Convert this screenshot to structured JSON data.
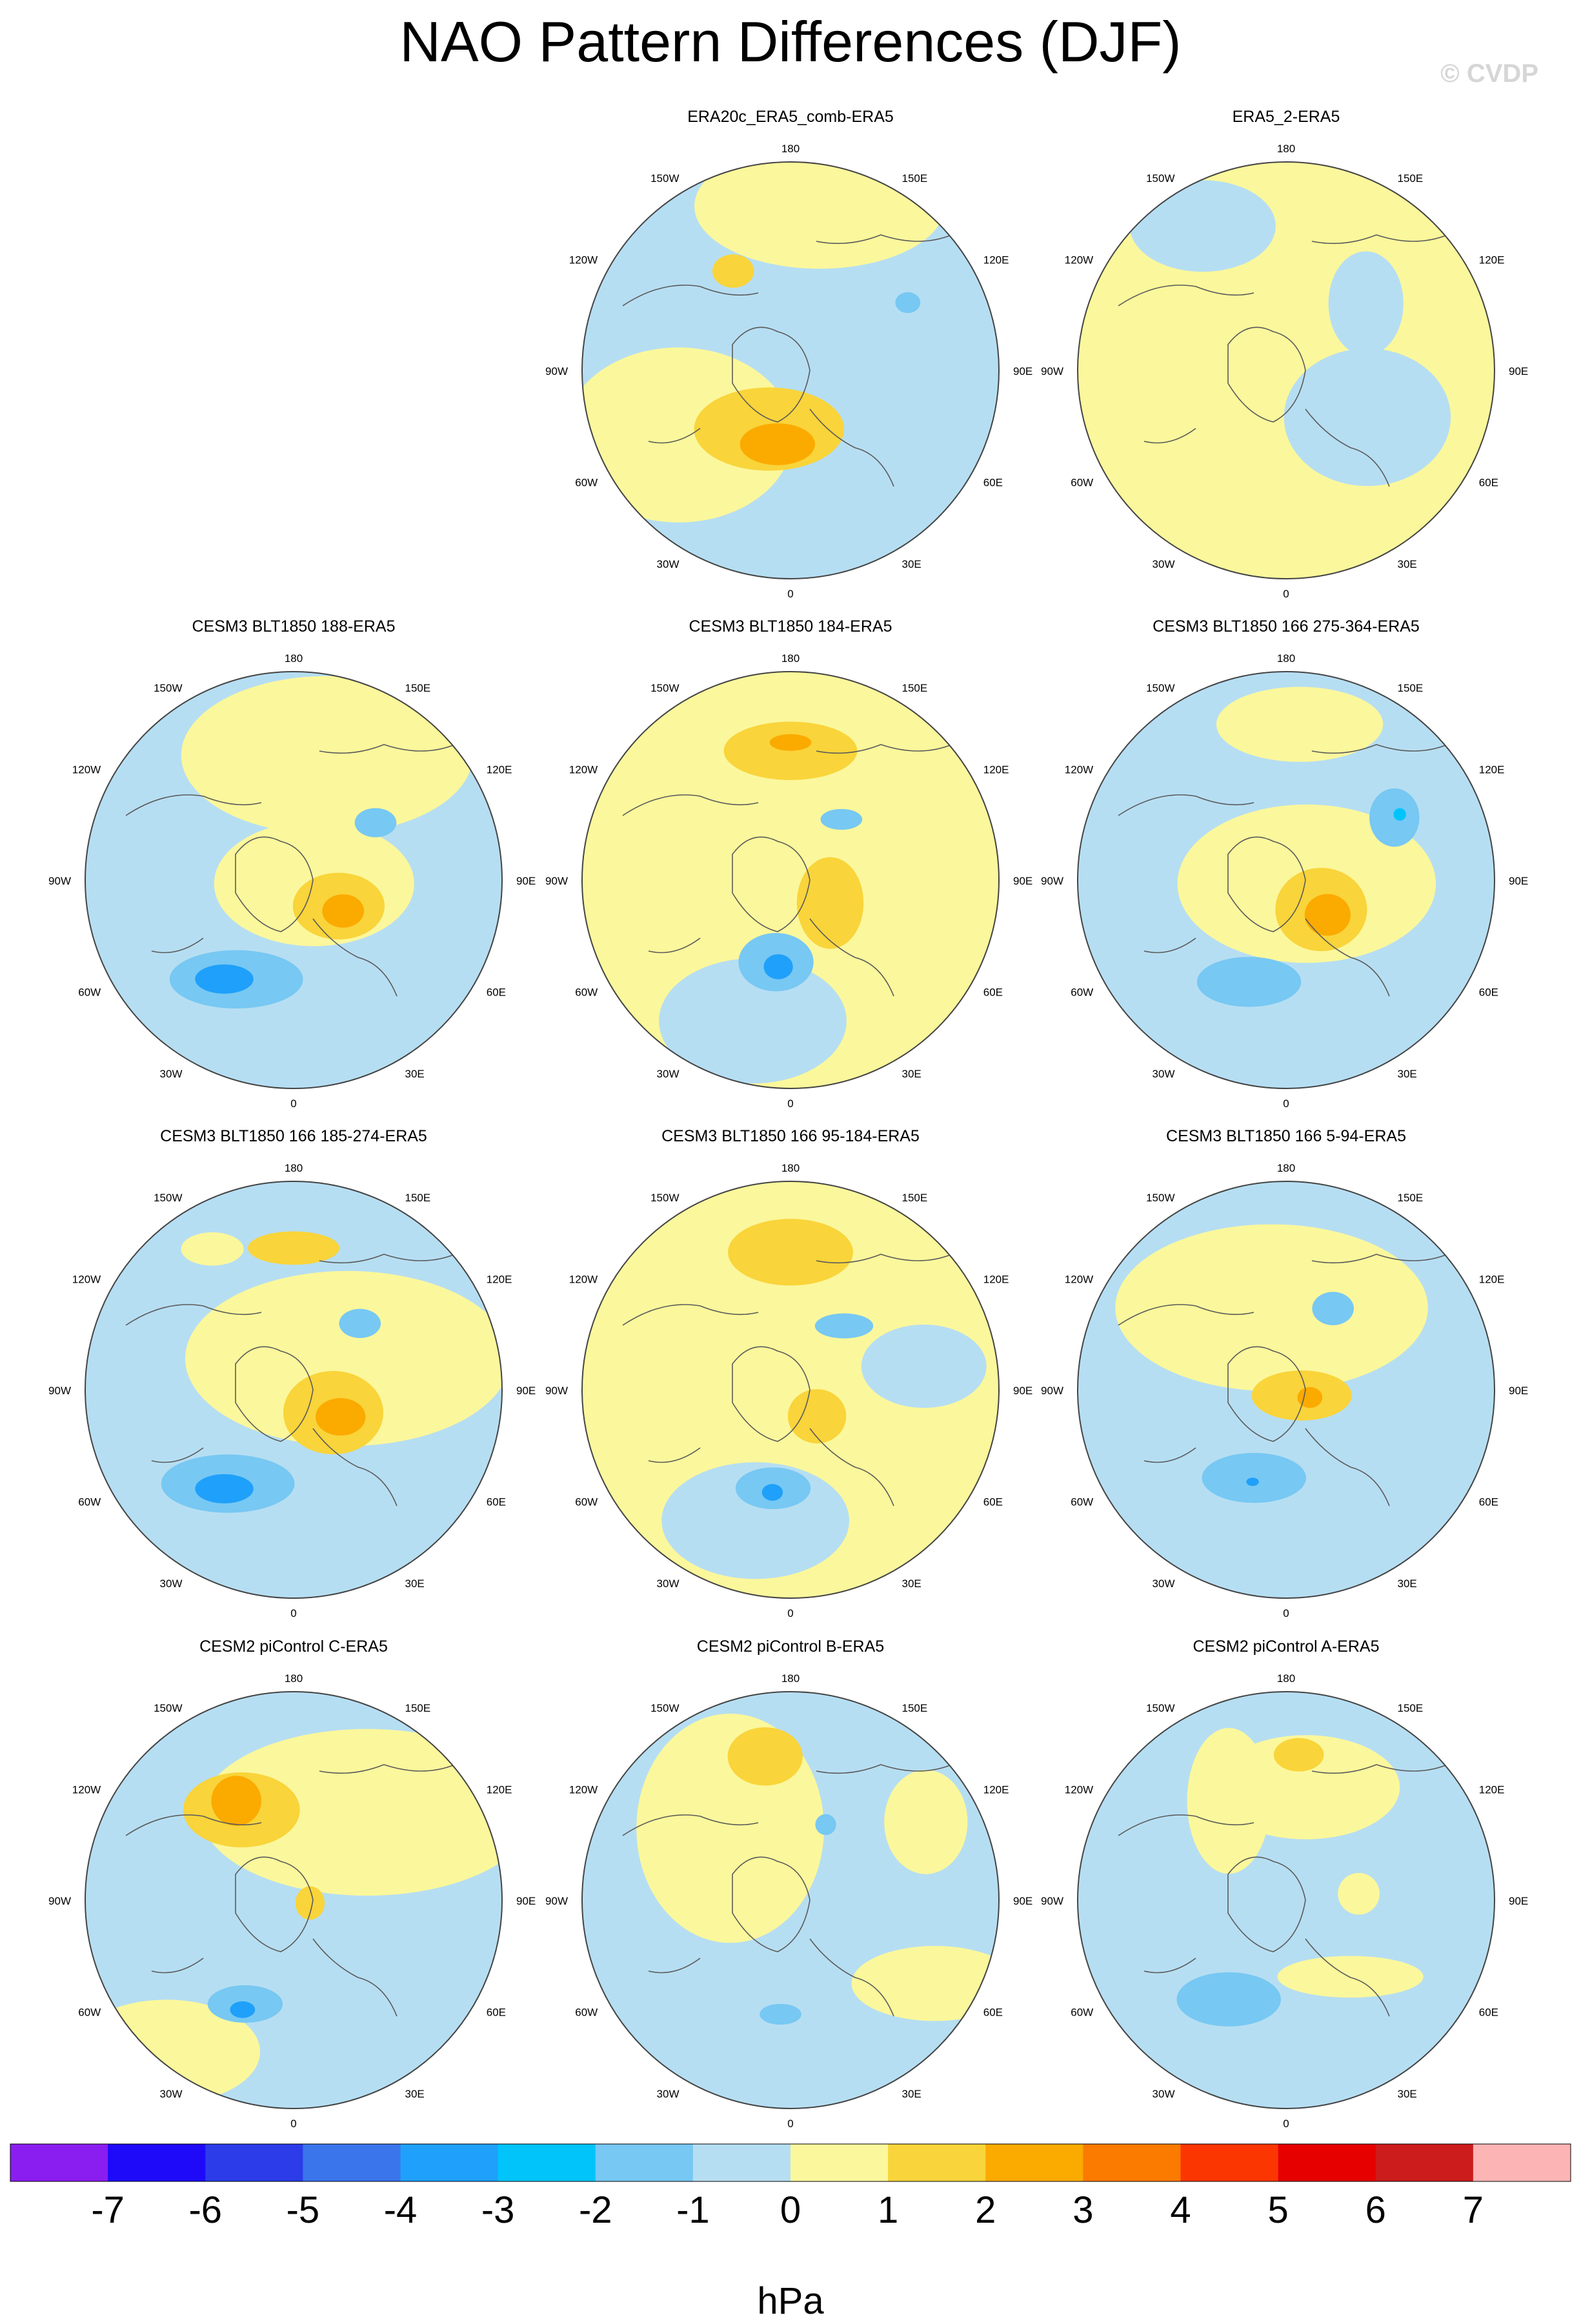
{
  "title": "NAO Pattern Differences (DJF)",
  "credit": "© CVDP",
  "lon_labels": [
    "180",
    "150E",
    "120E",
    "90E",
    "60E",
    "30E",
    "0",
    "30W",
    "60W",
    "90W",
    "120W",
    "150W"
  ],
  "panels": [
    {
      "title": "ERA20c_ERA5_comb-ERA5",
      "base": "#b6def2",
      "features": [
        {
          "lon": -60,
          "r": 0.62,
          "rx": 0.55,
          "ry": 0.42,
          "level": 1
        },
        {
          "lon": 170,
          "r": 0.8,
          "rx": 0.6,
          "ry": 0.3,
          "level": 1
        },
        {
          "lon": -20,
          "r": 0.3,
          "rx": 0.36,
          "ry": 0.2,
          "level": 2
        },
        {
          "lon": -10,
          "r": 0.36,
          "rx": 0.18,
          "ry": 0.1,
          "level": 3
        },
        {
          "lon": -150,
          "r": 0.55,
          "rx": 0.1,
          "ry": 0.08,
          "level": 2
        },
        {
          "lon": 120,
          "r": 0.65,
          "rx": 0.06,
          "ry": 0.05,
          "level": -2
        }
      ]
    },
    {
      "title": "ERA5_2-ERA5",
      "base": "#fbf79c",
      "features": [
        {
          "lon": 60,
          "r": 0.45,
          "rx": 0.4,
          "ry": 0.33,
          "level": -1
        },
        {
          "lon": -150,
          "r": 0.8,
          "rx": 0.35,
          "ry": 0.22,
          "level": -1
        },
        {
          "lon": 160,
          "r": 0.88,
          "rx": 0.12,
          "ry": 0.08,
          "level": 1
        },
        {
          "lon": 130,
          "r": 0.5,
          "rx": 0.18,
          "ry": 0.25,
          "level": -1
        }
      ]
    },
    {
      "title": "CESM3 BLT1850 188-ERA5",
      "base": "#b6def2",
      "features": [
        {
          "lon": 165,
          "r": 0.62,
          "rx": 0.7,
          "ry": 0.38,
          "level": 1
        },
        {
          "lon": 80,
          "r": 0.1,
          "rx": 0.48,
          "ry": 0.3,
          "level": 1
        },
        {
          "lon": 60,
          "r": 0.25,
          "rx": 0.22,
          "ry": 0.16,
          "level": 2
        },
        {
          "lon": 58,
          "r": 0.28,
          "rx": 0.1,
          "ry": 0.08,
          "level": 3
        },
        {
          "lon": -30,
          "r": 0.55,
          "rx": 0.32,
          "ry": 0.14,
          "level": -2
        },
        {
          "lon": -35,
          "r": 0.58,
          "rx": 0.14,
          "ry": 0.07,
          "level": -3
        },
        {
          "lon": 125,
          "r": 0.48,
          "rx": 0.1,
          "ry": 0.07,
          "level": -2
        }
      ]
    },
    {
      "title": "CESM3 BLT1850 184-ERA5",
      "base": "#fbf79c",
      "features": [
        {
          "lon": -15,
          "r": 0.7,
          "rx": 0.45,
          "ry": 0.3,
          "level": -1
        },
        {
          "lon": -10,
          "r": 0.4,
          "rx": 0.18,
          "ry": 0.14,
          "level": -2
        },
        {
          "lon": -8,
          "r": 0.42,
          "rx": 0.07,
          "ry": 0.06,
          "level": -3
        },
        {
          "lon": 180,
          "r": 0.62,
          "rx": 0.32,
          "ry": 0.14,
          "level": 2
        },
        {
          "lon": 180,
          "r": 0.66,
          "rx": 0.1,
          "ry": 0.04,
          "level": 3
        },
        {
          "lon": 60,
          "r": 0.22,
          "rx": 0.16,
          "ry": 0.22,
          "level": 2
        },
        {
          "lon": 140,
          "r": 0.38,
          "rx": 0.1,
          "ry": 0.05,
          "level": -2
        }
      ]
    },
    {
      "title": "CESM3 BLT1850 166 275-364-ERA5",
      "base": "#b6def2",
      "features": [
        {
          "lon": 80,
          "r": 0.1,
          "rx": 0.62,
          "ry": 0.38,
          "level": 1
        },
        {
          "lon": 175,
          "r": 0.75,
          "rx": 0.4,
          "ry": 0.18,
          "level": 1
        },
        {
          "lon": 50,
          "r": 0.22,
          "rx": 0.22,
          "ry": 0.2,
          "level": 2
        },
        {
          "lon": 50,
          "r": 0.26,
          "rx": 0.11,
          "ry": 0.1,
          "level": 3
        },
        {
          "lon": -20,
          "r": 0.52,
          "rx": 0.25,
          "ry": 0.12,
          "level": -2
        },
        {
          "lon": 120,
          "r": 0.6,
          "rx": 0.12,
          "ry": 0.14,
          "level": -2
        },
        {
          "lon": 120,
          "r": 0.63,
          "rx": 0.03,
          "ry": 0.03,
          "level": -4
        }
      ]
    },
    {
      "title": "CESM3 BLT1850 166 185-274-ERA5",
      "base": "#b6def2",
      "features": [
        {
          "lon": 120,
          "r": 0.3,
          "rx": 0.78,
          "ry": 0.42,
          "level": 1
        },
        {
          "lon": -150,
          "r": 0.78,
          "rx": 0.15,
          "ry": 0.08,
          "level": 1
        },
        {
          "lon": 60,
          "r": 0.22,
          "rx": 0.24,
          "ry": 0.2,
          "level": 2
        },
        {
          "lon": 60,
          "r": 0.26,
          "rx": 0.12,
          "ry": 0.09,
          "level": 3
        },
        {
          "lon": -35,
          "r": 0.55,
          "rx": 0.32,
          "ry": 0.14,
          "level": -2
        },
        {
          "lon": -35,
          "r": 0.58,
          "rx": 0.14,
          "ry": 0.07,
          "level": -3
        },
        {
          "lon": 180,
          "r": 0.68,
          "rx": 0.22,
          "ry": 0.08,
          "level": 2
        },
        {
          "lon": 135,
          "r": 0.45,
          "rx": 0.1,
          "ry": 0.07,
          "level": -2
        }
      ]
    },
    {
      "title": "CESM3 BLT1850 166 95-184-ERA5",
      "base": "#fbf79c",
      "features": [
        {
          "lon": -15,
          "r": 0.65,
          "rx": 0.45,
          "ry": 0.28,
          "level": -1
        },
        {
          "lon": -10,
          "r": 0.48,
          "rx": 0.18,
          "ry": 0.1,
          "level": -2
        },
        {
          "lon": -10,
          "r": 0.5,
          "rx": 0.05,
          "ry": 0.04,
          "level": -3
        },
        {
          "lon": 180,
          "r": 0.66,
          "rx": 0.3,
          "ry": 0.16,
          "level": 2
        },
        {
          "lon": 45,
          "r": 0.18,
          "rx": 0.14,
          "ry": 0.13,
          "level": 2
        },
        {
          "lon": 140,
          "r": 0.4,
          "rx": 0.14,
          "ry": 0.06,
          "level": -2
        },
        {
          "lon": 100,
          "r": 0.65,
          "rx": 0.3,
          "ry": 0.2,
          "level": -1
        }
      ]
    },
    {
      "title": "CESM3 BLT1850 166 5-94-ERA5",
      "base": "#b6def2",
      "features": [
        {
          "lon": -170,
          "r": 0.4,
          "rx": 0.75,
          "ry": 0.4,
          "level": 1
        },
        {
          "lon": 70,
          "r": 0.08,
          "rx": 0.24,
          "ry": 0.12,
          "level": 2
        },
        {
          "lon": 72,
          "r": 0.12,
          "rx": 0.06,
          "ry": 0.05,
          "level": 3
        },
        {
          "lon": -20,
          "r": 0.45,
          "rx": 0.25,
          "ry": 0.12,
          "level": -2
        },
        {
          "lon": -20,
          "r": 0.47,
          "rx": 0.03,
          "ry": 0.02,
          "level": -3
        },
        {
          "lon": 150,
          "r": 0.45,
          "rx": 0.1,
          "ry": 0.08,
          "level": -2
        }
      ]
    },
    {
      "title": "CESM2 piControl C-ERA5",
      "base": "#b6def2",
      "features": [
        {
          "lon": 140,
          "r": 0.55,
          "rx": 0.8,
          "ry": 0.4,
          "level": 1
        },
        {
          "lon": -40,
          "r": 0.95,
          "rx": 0.45,
          "ry": 0.25,
          "level": 1
        },
        {
          "lon": -150,
          "r": 0.5,
          "rx": 0.28,
          "ry": 0.18,
          "level": 2
        },
        {
          "lon": -150,
          "r": 0.55,
          "rx": 0.12,
          "ry": 0.12,
          "level": 3
        },
        {
          "lon": 0,
          "r": 0.4,
          "rx": 0.28,
          "ry": 0.18,
          "level": -1
        },
        {
          "lon": -25,
          "r": 0.55,
          "rx": 0.18,
          "ry": 0.09,
          "level": -2
        },
        {
          "lon": -25,
          "r": 0.58,
          "rx": 0.06,
          "ry": 0.04,
          "level": -3
        },
        {
          "lon": 80,
          "r": 0.08,
          "rx": 0.07,
          "ry": 0.08,
          "level": 2
        }
      ]
    },
    {
      "title": "CESM2 piControl B-ERA5",
      "base": "#b6def2",
      "features": [
        {
          "lon": -140,
          "r": 0.45,
          "rx": 0.45,
          "ry": 0.55,
          "level": 1
        },
        {
          "lon": -170,
          "r": 0.7,
          "rx": 0.18,
          "ry": 0.14,
          "level": 2
        },
        {
          "lon": 60,
          "r": 0.8,
          "rx": 0.4,
          "ry": 0.18,
          "level": 1
        },
        {
          "lon": 120,
          "r": 0.75,
          "rx": 0.2,
          "ry": 0.25,
          "level": 1
        },
        {
          "lon": -5,
          "r": 0.55,
          "rx": 0.1,
          "ry": 0.05,
          "level": -2
        },
        {
          "lon": 155,
          "r": 0.4,
          "rx": 0.05,
          "ry": 0.05,
          "level": -2
        }
      ]
    },
    {
      "title": "CESM2 piControl A-ERA5",
      "base": "#b6def2",
      "features": [
        {
          "lon": 170,
          "r": 0.55,
          "rx": 0.45,
          "ry": 0.25,
          "level": 1
        },
        {
          "lon": -150,
          "r": 0.55,
          "rx": 0.2,
          "ry": 0.35,
          "level": 1
        },
        {
          "lon": 40,
          "r": 0.48,
          "rx": 0.35,
          "ry": 0.1,
          "level": 1
        },
        {
          "lon": 95,
          "r": 0.35,
          "rx": 0.1,
          "ry": 0.1,
          "level": 1
        },
        {
          "lon": 175,
          "r": 0.7,
          "rx": 0.12,
          "ry": 0.08,
          "level": 2
        },
        {
          "lon": -30,
          "r": 0.55,
          "rx": 0.25,
          "ry": 0.13,
          "level": -2
        }
      ]
    }
  ],
  "colorbar": {
    "colors": [
      "#8a1ef0",
      "#1e0af8",
      "#2b3ce8",
      "#3a75ec",
      "#1fa0fa",
      "#00c4fa",
      "#77c8f3",
      "#b6def2",
      "#fbf79c",
      "#f9d43a",
      "#fbaa00",
      "#fb7a00",
      "#fb3600",
      "#e60000",
      "#cc1c1c",
      "#fcb4b4"
    ],
    "labels": [
      "-7",
      "-6",
      "-5",
      "-4",
      "-3",
      "-2",
      "-1",
      "0",
      "1",
      "2",
      "3",
      "4",
      "5",
      "6",
      "7"
    ],
    "units": "hPa"
  },
  "level_colors": {
    "-4": "#00c4fa",
    "-3": "#1fa0fa",
    "-2": "#77c8f3",
    "-1": "#b6def2",
    "1": "#fbf79c",
    "2": "#f9d43a",
    "3": "#fbaa00"
  }
}
